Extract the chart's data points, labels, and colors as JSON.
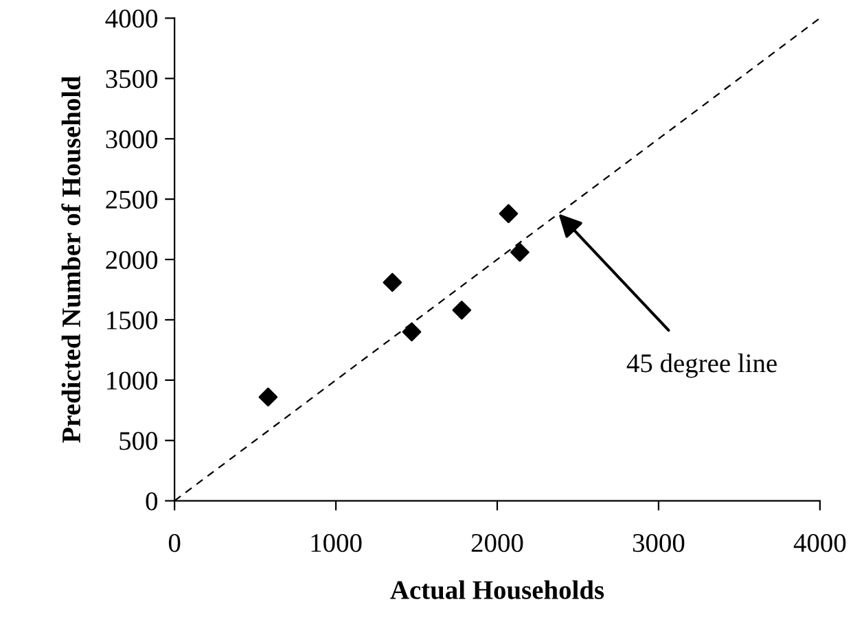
{
  "chart_data": {
    "type": "scatter",
    "xlabel": "Actual Households",
    "ylabel": "Predicted Number of Household",
    "x": [
      580,
      1350,
      1470,
      1780,
      2070,
      2140
    ],
    "series": [
      {
        "color": "#000000",
        "marker": "diamond",
        "values": [
          860,
          1810,
          1400,
          1580,
          2380,
          2060
        ]
      },
      {
        "type": "line",
        "color": "#000000",
        "line_style": "dashed",
        "marker": "none",
        "x": [
          0,
          4000
        ],
        "values": [
          0,
          4000
        ]
      }
    ],
    "annotations": [
      {
        "text": "45 degree line",
        "x": 2380,
        "y": 2380
      }
    ],
    "xlim": [
      0,
      4000
    ],
    "ylim": [
      0,
      4000
    ],
    "xticks": [
      0,
      1000,
      2000,
      3000,
      4000
    ],
    "yticks": [
      0,
      500,
      1000,
      1500,
      2000,
      2500,
      3000,
      3500,
      4000
    ],
    "grid": false,
    "legend": false
  }
}
